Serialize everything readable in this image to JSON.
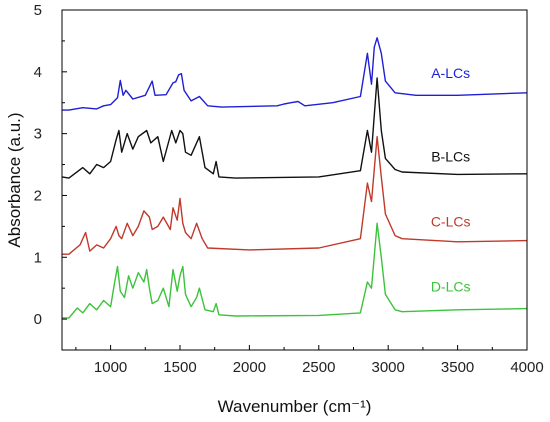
{
  "chart_data": {
    "type": "line",
    "xlabel": "Wavenumber (cm⁻¹)",
    "ylabel": "Absorbance (a.u.)",
    "xlim": [
      650,
      4000
    ],
    "ylim": [
      -0.5,
      5
    ],
    "xticks": [
      1000,
      1500,
      2000,
      2500,
      3000,
      3500,
      4000
    ],
    "yticks": [
      0,
      1,
      2,
      3,
      4,
      5
    ],
    "grid": false,
    "legend": "inline labels to the right of the curves",
    "series": [
      {
        "name": "A-LCs",
        "color": "#1f1fd6",
        "baseline": 3.38,
        "end_level": 3.66,
        "x": [
          650,
          700,
          800,
          900,
          950,
          1000,
          1050,
          1070,
          1090,
          1110,
          1160,
          1250,
          1300,
          1320,
          1400,
          1450,
          1470,
          1490,
          1510,
          1530,
          1580,
          1640,
          1700,
          1800,
          2000,
          2200,
          2250,
          2300,
          2350,
          2400,
          2600,
          2800,
          2850,
          2880,
          2900,
          2920,
          2950,
          2980,
          3050,
          3200,
          3500,
          4000
        ],
        "values": [
          3.38,
          3.38,
          3.42,
          3.4,
          3.45,
          3.47,
          3.58,
          3.86,
          3.62,
          3.7,
          3.56,
          3.62,
          3.85,
          3.62,
          3.63,
          3.82,
          3.84,
          3.95,
          3.97,
          3.7,
          3.53,
          3.6,
          3.45,
          3.43,
          3.44,
          3.45,
          3.48,
          3.5,
          3.52,
          3.45,
          3.5,
          3.6,
          4.3,
          3.8,
          4.4,
          4.55,
          4.3,
          3.85,
          3.66,
          3.62,
          3.62,
          3.66
        ]
      },
      {
        "name": "B-LCs",
        "color": "#111111",
        "baseline": 2.28,
        "end_level": 2.35,
        "x": [
          650,
          700,
          800,
          850,
          900,
          950,
          1000,
          1040,
          1060,
          1080,
          1120,
          1160,
          1200,
          1260,
          1290,
          1340,
          1380,
          1440,
          1470,
          1500,
          1520,
          1540,
          1580,
          1640,
          1680,
          1740,
          1760,
          1780,
          1900,
          2500,
          2800,
          2850,
          2880,
          2920,
          2950,
          2980,
          3050,
          3100,
          3500,
          4000
        ],
        "values": [
          2.3,
          2.28,
          2.45,
          2.35,
          2.5,
          2.45,
          2.55,
          2.9,
          3.05,
          2.7,
          3.0,
          2.75,
          2.95,
          3.05,
          2.85,
          2.95,
          2.55,
          3.05,
          2.85,
          3.05,
          3.0,
          2.7,
          2.65,
          2.95,
          2.45,
          2.35,
          2.55,
          2.3,
          2.28,
          2.3,
          2.4,
          3.05,
          2.7,
          3.9,
          3.05,
          2.6,
          2.42,
          2.38,
          2.34,
          2.35
        ]
      },
      {
        "name": "C-LCs",
        "color": "#c0392b",
        "baseline": 1.05,
        "end_level": 1.27,
        "x": [
          650,
          700,
          780,
          820,
          850,
          900,
          950,
          1000,
          1040,
          1060,
          1080,
          1120,
          1160,
          1200,
          1240,
          1280,
          1300,
          1340,
          1380,
          1430,
          1450,
          1480,
          1500,
          1520,
          1540,
          1580,
          1620,
          1660,
          1700,
          2000,
          2500,
          2800,
          2850,
          2880,
          2920,
          2950,
          2980,
          3050,
          3100,
          3500,
          4000
        ],
        "values": [
          1.05,
          1.05,
          1.2,
          1.4,
          1.1,
          1.2,
          1.15,
          1.3,
          1.5,
          1.35,
          1.3,
          1.55,
          1.35,
          1.5,
          1.75,
          1.65,
          1.45,
          1.5,
          1.65,
          1.45,
          1.8,
          1.6,
          1.95,
          1.55,
          1.4,
          1.3,
          1.55,
          1.3,
          1.15,
          1.12,
          1.15,
          1.3,
          2.2,
          1.9,
          2.95,
          2.3,
          1.7,
          1.35,
          1.3,
          1.25,
          1.27
        ]
      },
      {
        "name": "D-LCs",
        "color": "#3cc33c",
        "baseline": 0.0,
        "end_level": 0.17,
        "x": [
          650,
          700,
          760,
          800,
          850,
          900,
          950,
          1000,
          1030,
          1050,
          1070,
          1100,
          1130,
          1160,
          1200,
          1240,
          1260,
          1280,
          1300,
          1340,
          1380,
          1420,
          1450,
          1480,
          1500,
          1520,
          1540,
          1580,
          1620,
          1640,
          1680,
          1740,
          1760,
          1780,
          1900,
          2500,
          2800,
          2850,
          2880,
          2920,
          2950,
          2980,
          3050,
          3100,
          3500,
          4000
        ],
        "values": [
          0.02,
          0.02,
          0.18,
          0.1,
          0.25,
          0.15,
          0.3,
          0.2,
          0.6,
          0.85,
          0.45,
          0.35,
          0.7,
          0.5,
          0.75,
          0.6,
          0.8,
          0.5,
          0.25,
          0.3,
          0.5,
          0.2,
          0.8,
          0.45,
          0.7,
          0.85,
          0.4,
          0.2,
          0.35,
          0.5,
          0.15,
          0.12,
          0.25,
          0.07,
          0.05,
          0.06,
          0.1,
          0.6,
          0.5,
          1.55,
          1.0,
          0.4,
          0.15,
          0.12,
          0.15,
          0.17
        ]
      }
    ]
  }
}
